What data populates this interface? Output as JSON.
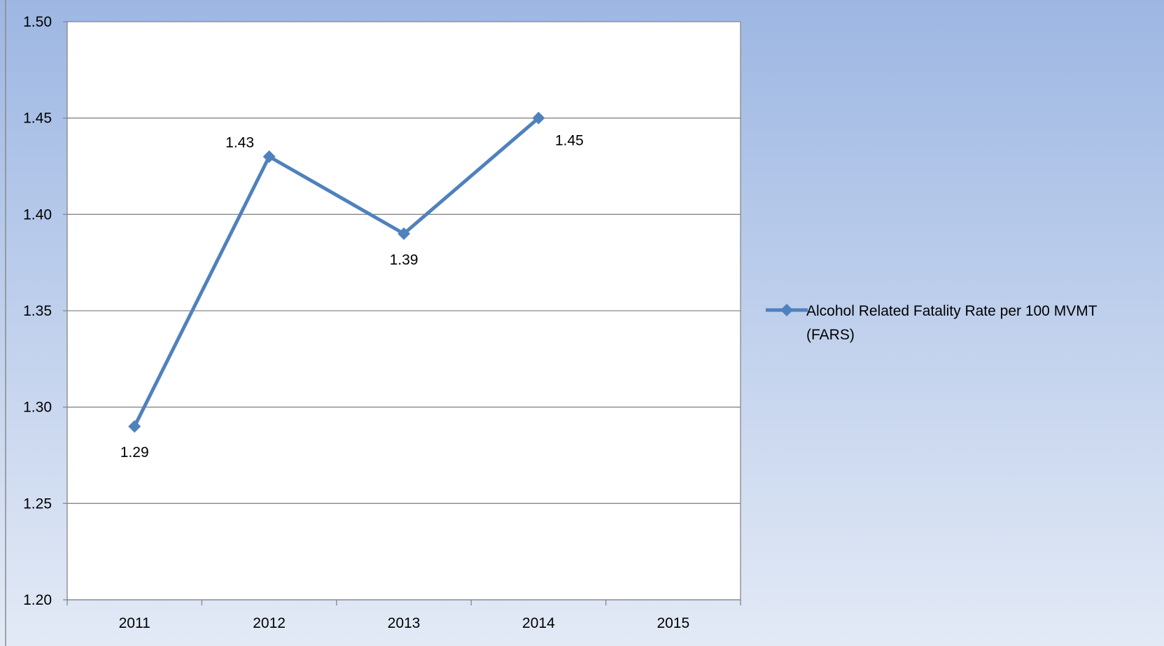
{
  "chart_data": {
    "type": "line",
    "categories": [
      "2011",
      "2012",
      "2013",
      "2014",
      "2015"
    ],
    "series": [
      {
        "name": "Alcohol Related Fatality Rate per 100 MVMT (FARS)",
        "legend_lines": [
          "Alcohol Related Fatality Rate per 100 MVMT",
          "(FARS)"
        ],
        "values": [
          1.29,
          1.43,
          1.39,
          1.45,
          null
        ],
        "data_labels": [
          "1.29",
          "1.43",
          "1.39",
          "1.45",
          ""
        ],
        "color": "#4f81bd",
        "marker": "diamond"
      }
    ],
    "yticks": [
      "1.20",
      "1.25",
      "1.30",
      "1.35",
      "1.40",
      "1.45",
      "1.50"
    ],
    "ylim": [
      1.2,
      1.5
    ],
    "title": "",
    "xlabel": "",
    "ylabel": "",
    "grid": "horizontal",
    "legend_position": "right",
    "colors": {
      "background_top": "#9db7e3",
      "background_bottom": "#e3eaf6",
      "plot_area": "#ffffff",
      "gridline": "#868686",
      "axis": "#868686"
    }
  }
}
